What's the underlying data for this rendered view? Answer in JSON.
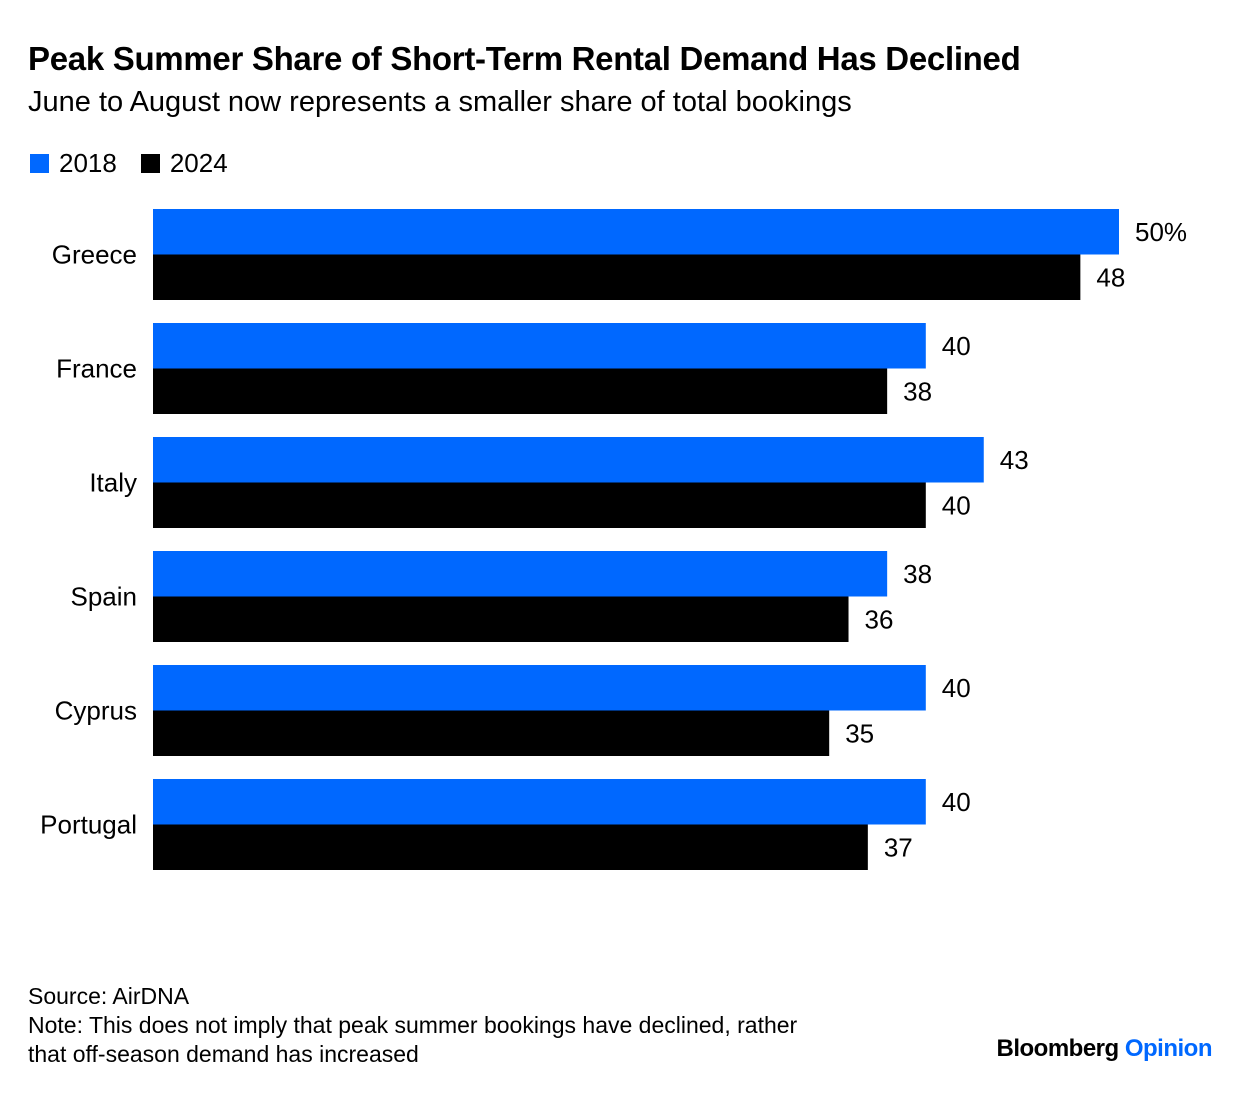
{
  "title": "Peak Summer Share of Short-Term Rental Demand Has Declined",
  "subtitle": "June to August now represents a smaller share of total bookings",
  "source": "Source: AirDNA",
  "note_line1": "Note: This does not imply that peak summer bookings have declined, rather",
  "note_line2": "that off-season demand has increased",
  "brand": {
    "name": "Bloomberg",
    "product": "Opinion",
    "product_color": "#0068ff"
  },
  "colors": {
    "series_2018": "#0068ff",
    "series_2024": "#000000"
  },
  "chart_data": {
    "type": "bar",
    "orientation": "horizontal",
    "categories": [
      "Greece",
      "France",
      "Italy",
      "Spain",
      "Cyprus",
      "Portugal"
    ],
    "series": [
      {
        "name": "2018",
        "values": [
          50,
          40,
          43,
          38,
          40,
          40
        ]
      },
      {
        "name": "2024",
        "values": [
          48,
          38,
          40,
          36,
          35,
          37
        ]
      }
    ],
    "value_unit": "%",
    "xlim": [
      0,
      50
    ],
    "grid": false,
    "legend_position": "top-left"
  }
}
